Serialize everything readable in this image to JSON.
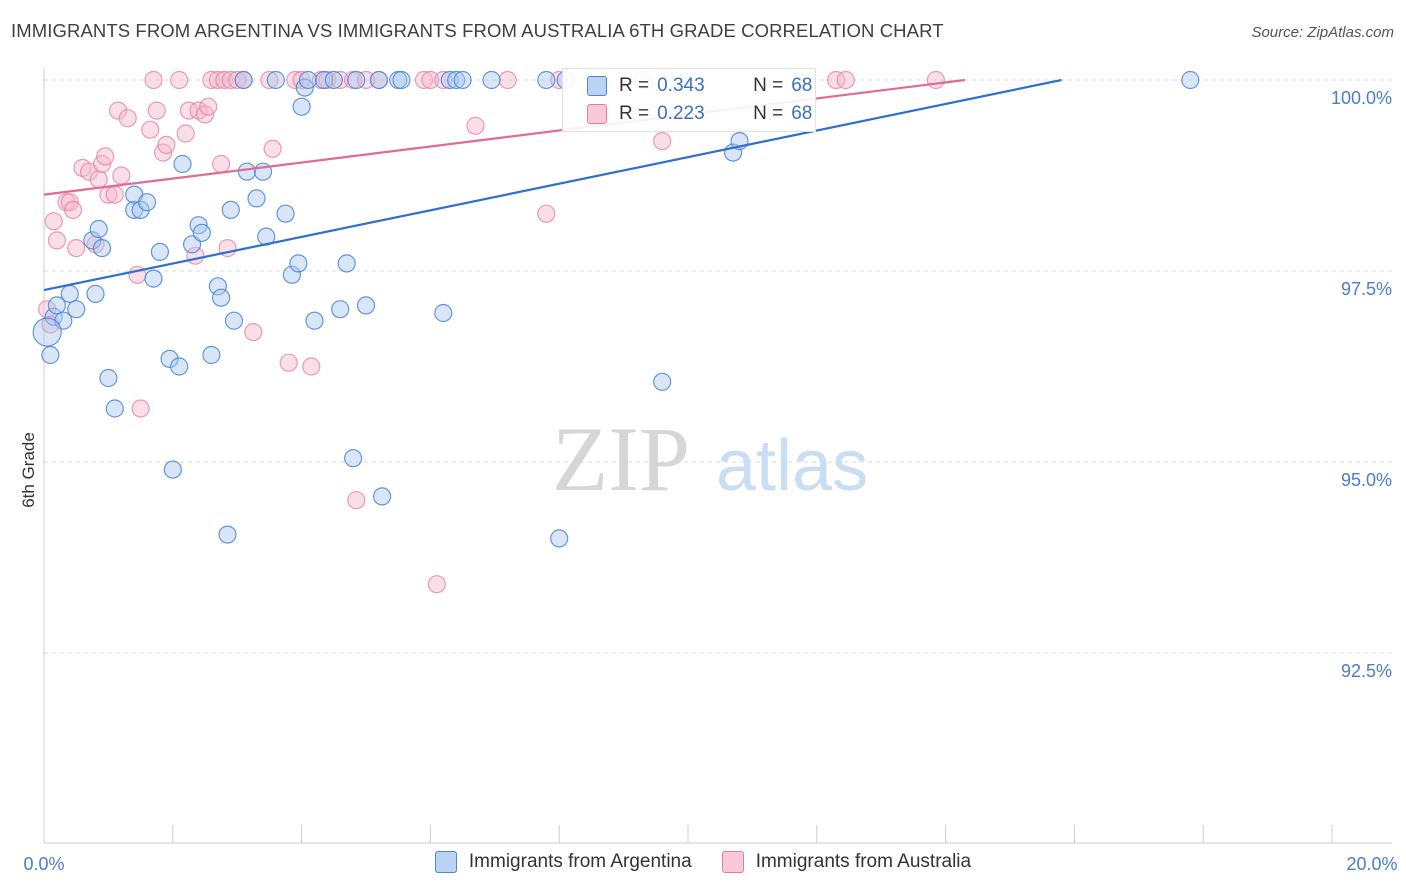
{
  "title": "IMMIGRANTS FROM ARGENTINA VS IMMIGRANTS FROM AUSTRALIA 6TH GRADE CORRELATION CHART",
  "source": "Source: ZipAtlas.com",
  "watermark": {
    "zip": "ZIP",
    "atlas": "atlas"
  },
  "colors": {
    "blue": "#4a85d6",
    "blue_fill": "#a9c8ef",
    "blue_line": "#2f6fd0",
    "pink": "#e879a0",
    "pink_fill": "#f5b8cc",
    "pink_line": "#e06b95",
    "grid": "#d9d9d9",
    "tick_text": "#4a7dc9"
  },
  "legend": [
    {
      "r_label": "R =",
      "r_value": "0.343",
      "n_label": "N =",
      "n_value": "68"
    },
    {
      "r_label": "R =",
      "r_value": "0.223",
      "n_label": "N =",
      "n_value": "68"
    }
  ],
  "chart_data": {
    "type": "scatter",
    "title": "IMMIGRANTS FROM ARGENTINA VS IMMIGRANTS FROM AUSTRALIA 6TH GRADE CORRELATION CHART",
    "xlabel": "",
    "ylabel": "6th Grade",
    "xlim": [
      0,
      20
    ],
    "ylim": [
      90.1,
      100.2
    ],
    "x_tick_labels": [
      "0.0%",
      "20.0%"
    ],
    "y_ticks": [
      92.5,
      95.0,
      97.5,
      100.0
    ],
    "y_tick_labels": [
      "92.5%",
      "95.0%",
      "97.5%",
      "100.0%"
    ],
    "grid": true,
    "legend_position": "top-center",
    "series": [
      {
        "name": "Immigrants from Argentina",
        "color": "#4a85d6",
        "r": 0.343,
        "n": 68,
        "trend": [
          [
            0,
            97.25
          ],
          [
            15.8,
            100.0
          ]
        ],
        "points": [
          [
            0.1,
            96.4
          ],
          [
            0.15,
            96.9
          ],
          [
            0.2,
            97.05
          ],
          [
            0.3,
            96.85
          ],
          [
            0.4,
            97.2
          ],
          [
            0.5,
            97.0
          ],
          [
            0.8,
            97.2
          ],
          [
            0.75,
            97.9
          ],
          [
            0.85,
            98.05
          ],
          [
            0.9,
            97.8
          ],
          [
            1.0,
            96.1
          ],
          [
            1.1,
            95.7
          ],
          [
            1.4,
            98.3
          ],
          [
            1.5,
            98.3
          ],
          [
            1.4,
            98.5
          ],
          [
            1.6,
            98.4
          ],
          [
            1.7,
            97.4
          ],
          [
            1.8,
            97.75
          ],
          [
            1.95,
            96.35
          ],
          [
            2.0,
            94.9
          ],
          [
            2.1,
            96.25
          ],
          [
            2.15,
            98.9
          ],
          [
            2.3,
            97.85
          ],
          [
            2.4,
            98.1
          ],
          [
            2.45,
            98.0
          ],
          [
            2.6,
            96.4
          ],
          [
            2.7,
            97.3
          ],
          [
            2.75,
            97.15
          ],
          [
            2.85,
            94.05
          ],
          [
            2.9,
            98.3
          ],
          [
            2.95,
            96.85
          ],
          [
            3.1,
            100.0
          ],
          [
            3.15,
            98.8
          ],
          [
            3.3,
            98.45
          ],
          [
            3.4,
            98.8
          ],
          [
            3.45,
            97.95
          ],
          [
            3.6,
            100.0
          ],
          [
            3.75,
            98.25
          ],
          [
            3.85,
            97.45
          ],
          [
            3.95,
            97.6
          ],
          [
            4.0,
            99.65
          ],
          [
            4.05,
            99.9
          ],
          [
            4.1,
            100.0
          ],
          [
            4.2,
            96.85
          ],
          [
            4.35,
            100.0
          ],
          [
            4.5,
            100.0
          ],
          [
            4.6,
            97.0
          ],
          [
            4.7,
            97.6
          ],
          [
            4.8,
            95.05
          ],
          [
            4.85,
            100.0
          ],
          [
            5.0,
            97.05
          ],
          [
            5.2,
            100.0
          ],
          [
            5.25,
            94.55
          ],
          [
            5.5,
            100.0
          ],
          [
            5.55,
            100.0
          ],
          [
            6.2,
            96.95
          ],
          [
            6.3,
            100.0
          ],
          [
            6.4,
            100.0
          ],
          [
            6.5,
            100.0
          ],
          [
            6.95,
            100.0
          ],
          [
            7.8,
            100.0
          ],
          [
            8.0,
            94.0
          ],
          [
            8.1,
            100.0
          ],
          [
            9.6,
            96.05
          ],
          [
            10.7,
            99.05
          ],
          [
            10.8,
            99.2
          ],
          [
            17.8,
            100.0
          ],
          [
            0.05,
            96.7
          ]
        ]
      },
      {
        "name": "Immigrants from Australia",
        "color": "#e879a0",
        "r": 0.223,
        "n": 68,
        "trend": [
          [
            0,
            98.5
          ],
          [
            14.3,
            100.0
          ]
        ],
        "points": [
          [
            0.05,
            97.0
          ],
          [
            0.1,
            96.8
          ],
          [
            0.15,
            98.15
          ],
          [
            0.2,
            97.9
          ],
          [
            0.35,
            98.4
          ],
          [
            0.4,
            98.4
          ],
          [
            0.45,
            98.3
          ],
          [
            0.5,
            97.8
          ],
          [
            0.6,
            98.85
          ],
          [
            0.7,
            98.8
          ],
          [
            0.8,
            97.85
          ],
          [
            0.85,
            98.7
          ],
          [
            0.9,
            98.9
          ],
          [
            0.95,
            99.0
          ],
          [
            1.0,
            98.5
          ],
          [
            1.1,
            98.5
          ],
          [
            1.15,
            99.6
          ],
          [
            1.2,
            98.75
          ],
          [
            1.3,
            99.5
          ],
          [
            1.45,
            97.45
          ],
          [
            1.5,
            95.7
          ],
          [
            1.65,
            99.35
          ],
          [
            1.7,
            100.0
          ],
          [
            1.75,
            99.6
          ],
          [
            1.85,
            99.05
          ],
          [
            1.9,
            99.15
          ],
          [
            2.1,
            100.0
          ],
          [
            2.2,
            99.3
          ],
          [
            2.25,
            99.6
          ],
          [
            2.35,
            97.7
          ],
          [
            2.4,
            99.6
          ],
          [
            2.5,
            99.55
          ],
          [
            2.55,
            99.65
          ],
          [
            2.6,
            100.0
          ],
          [
            2.7,
            100.0
          ],
          [
            2.75,
            98.9
          ],
          [
            2.8,
            100.0
          ],
          [
            2.85,
            97.8
          ],
          [
            2.9,
            100.0
          ],
          [
            3.0,
            100.0
          ],
          [
            3.1,
            100.0
          ],
          [
            3.25,
            96.7
          ],
          [
            3.5,
            100.0
          ],
          [
            3.55,
            99.1
          ],
          [
            3.8,
            96.3
          ],
          [
            3.9,
            100.0
          ],
          [
            4.0,
            100.0
          ],
          [
            4.15,
            96.25
          ],
          [
            4.3,
            100.0
          ],
          [
            4.4,
            100.0
          ],
          [
            4.6,
            100.0
          ],
          [
            4.8,
            100.0
          ],
          [
            4.85,
            94.5
          ],
          [
            5.0,
            100.0
          ],
          [
            5.2,
            100.0
          ],
          [
            5.9,
            100.0
          ],
          [
            6.0,
            100.0
          ],
          [
            6.1,
            93.4
          ],
          [
            6.2,
            100.0
          ],
          [
            6.7,
            99.4
          ],
          [
            7.2,
            100.0
          ],
          [
            7.8,
            98.25
          ],
          [
            8.0,
            100.0
          ],
          [
            9.3,
            100.0
          ],
          [
            9.6,
            99.2
          ],
          [
            12.3,
            100.0
          ],
          [
            12.45,
            100.0
          ],
          [
            13.85,
            100.0
          ]
        ]
      }
    ]
  }
}
